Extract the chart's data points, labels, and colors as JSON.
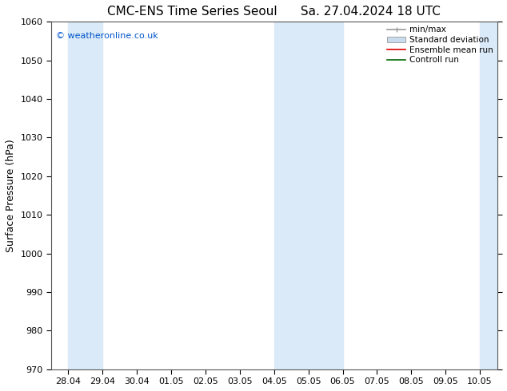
{
  "title_left": "CMC-ENS Time Series Seoul",
  "title_right": "Sa. 27.04.2024 18 UTC",
  "ylabel": "Surface Pressure (hPa)",
  "ylim": [
    970,
    1060
  ],
  "yticks": [
    970,
    980,
    990,
    1000,
    1010,
    1020,
    1030,
    1040,
    1050,
    1060
  ],
  "xtick_labels": [
    "28.04",
    "29.04",
    "30.04",
    "01.05",
    "02.05",
    "03.05",
    "04.05",
    "05.05",
    "06.05",
    "07.05",
    "08.05",
    "09.05",
    "10.05"
  ],
  "band_color": "#daeaf8",
  "band_ranges": [
    [
      0,
      1
    ],
    [
      6,
      8
    ],
    [
      12,
      13
    ]
  ],
  "watermark": "© weatheronline.co.uk",
  "watermark_color": "#0055cc",
  "legend_items": [
    {
      "label": "min/max",
      "color": "#aaaaaa",
      "type": "errorbar"
    },
    {
      "label": "Standard deviation",
      "color": "#c8dced",
      "type": "band"
    },
    {
      "label": "Ensemble mean run",
      "color": "#dd0000",
      "type": "line"
    },
    {
      "label": "Controll run",
      "color": "#006600",
      "type": "line"
    }
  ],
  "background_color": "#ffffff",
  "grid_color": "#cccccc",
  "title_fontsize": 11,
  "axis_label_fontsize": 9,
  "tick_fontsize": 8,
  "legend_fontsize": 7.5
}
